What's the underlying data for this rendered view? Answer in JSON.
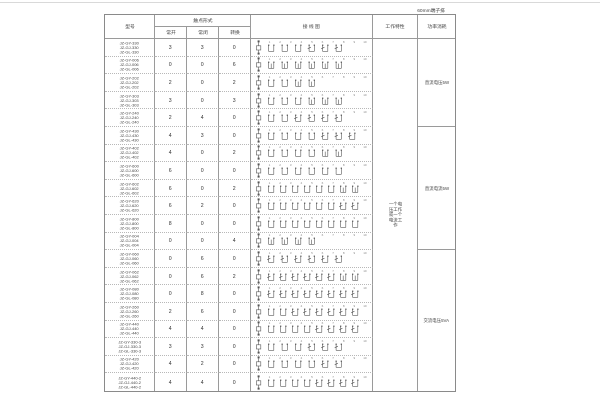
{
  "page": {
    "corner_label": "60mm端子排"
  },
  "table": {
    "headers": {
      "model": "型号",
      "contact_form": "触点形式",
      "normally_open": "常开",
      "normally_closed": "常闭",
      "changeover": "转换",
      "wiring_diagram": "接 线 图",
      "working_characteristic": "工作特性",
      "power_consumption": "功率消耗"
    },
    "working_characteristic_note": "一个电压工作或一个电流工作",
    "power_consumption_cells": [
      "直流电压5W",
      "直流电流5W",
      "交流电压5VA"
    ],
    "diagram_terminals": [
      "1",
      "2",
      "3",
      "4",
      "5",
      "6",
      "7",
      "8",
      "9",
      "10"
    ],
    "rows": [
      {
        "models": [
          "JZ-GY-330",
          "JZ-GJ-330",
          "JZ-GL-330"
        ],
        "no": 3,
        "nc": 3,
        "co": 0
      },
      {
        "models": [
          "JZ-GY-006",
          "JZ-GJ-006",
          "JZ-GL-006"
        ],
        "no": 0,
        "nc": 0,
        "co": 6
      },
      {
        "models": [
          "JZ-GY-202",
          "JZ-GJ-202",
          "JZ-GL-202"
        ],
        "no": 2,
        "nc": 0,
        "co": 2
      },
      {
        "models": [
          "JZ-GY-303",
          "JZ-GJ-303",
          "JZ-GL-303"
        ],
        "no": 3,
        "nc": 0,
        "co": 3
      },
      {
        "models": [
          "JZ-GY-240",
          "JZ-GJ-240",
          "JZ-GL-240"
        ],
        "no": 2,
        "nc": 4,
        "co": 0
      },
      {
        "models": [
          "JZ-GY-430",
          "JZ-GJ-430",
          "JZ-GL-430"
        ],
        "no": 4,
        "nc": 3,
        "co": 0
      },
      {
        "models": [
          "JZ-GY-402",
          "JZ-GJ-402",
          "JZ-GL-402"
        ],
        "no": 4,
        "nc": 0,
        "co": 2
      },
      {
        "models": [
          "JZ-GY-600",
          "JZ-GJ-600",
          "JZ-GL-600"
        ],
        "no": 6,
        "nc": 0,
        "co": 0
      },
      {
        "models": [
          "JZ-GY-602",
          "JZ-GJ-602",
          "JZ-GL-602"
        ],
        "no": 6,
        "nc": 0,
        "co": 2
      },
      {
        "models": [
          "JZ-GY-620",
          "JZ-GJ-620",
          "JZ-GL-620"
        ],
        "no": 6,
        "nc": 2,
        "co": 0
      },
      {
        "models": [
          "JZ-GY-800",
          "JZ-GJ-800",
          "JZ-GL-800"
        ],
        "no": 8,
        "nc": 0,
        "co": 0
      },
      {
        "models": [
          "JZ-GY-004",
          "JZ-GJ-004",
          "JZ-GL-004"
        ],
        "no": 0,
        "nc": 0,
        "co": 4
      },
      {
        "models": [
          "JZ-GY-060",
          "JZ-GJ-060",
          "JZ-GL-060"
        ],
        "no": 0,
        "nc": 6,
        "co": 0
      },
      {
        "models": [
          "JZ-GY-062",
          "JZ-GJ-062",
          "JZ-GL-062"
        ],
        "no": 0,
        "nc": 6,
        "co": 2
      },
      {
        "models": [
          "JZ-GY-080",
          "JZ-GJ-080",
          "JZ-GL-080"
        ],
        "no": 0,
        "nc": 8,
        "co": 0
      },
      {
        "models": [
          "JZ-GY-260",
          "JZ-GJ-260",
          "JZ-GL-260"
        ],
        "no": 2,
        "nc": 6,
        "co": 0
      },
      {
        "models": [
          "JZ-GY-440",
          "JZ-GJ-440",
          "JZ-GL-440"
        ],
        "no": 4,
        "nc": 4,
        "co": 0
      },
      {
        "models": [
          "JZ-GY-330-3",
          "JZ-GJ-330-3",
          "JZ-GL-330-3"
        ],
        "no": 3,
        "nc": 3,
        "co": 0
      },
      {
        "models": [
          "JZ-GY-420",
          "JZ-GJ-420",
          "JZ-GL-420"
        ],
        "no": 4,
        "nc": 2,
        "co": 0
      },
      {
        "models": [
          "JZ-GY-440-2",
          "JZ-GJ-440-2",
          "JZ-GL-440-2"
        ],
        "no": 4,
        "nc": 4,
        "co": 0
      }
    ]
  }
}
